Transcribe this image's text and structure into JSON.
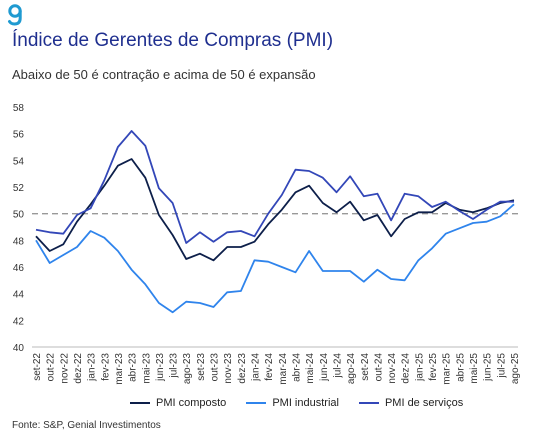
{
  "header": {
    "logo_icon": "genial-g-logo-icon",
    "title": "Índice de Gerentes de Compras (PMI)",
    "subtitle": "Abaixo de 50 é contração e acima de 50 é expansão"
  },
  "footer": {
    "source": "Fonte: S&P, Genial Investimentos"
  },
  "colors": {
    "composite": "#0d1f4a",
    "industrial": "#2f84ec",
    "services": "#3347b8",
    "reference": "#999999",
    "title": "#1f2f8f"
  },
  "chart_data": {
    "type": "line",
    "title": "Índice de Gerentes de Compras (PMI)",
    "subtitle": "Abaixo de 50 é contração e acima de 50 é expansão",
    "ylim": [
      40,
      58
    ],
    "yticks": [
      40,
      42,
      44,
      46,
      48,
      50,
      52,
      54,
      56,
      58
    ],
    "reference_line": 50,
    "grid": false,
    "legend_position": "bottom",
    "categories": [
      "set-22",
      "out-22",
      "nov-22",
      "dez-22",
      "jan-23",
      "fev-23",
      "mar-23",
      "abr-23",
      "mai-23",
      "jun-23",
      "jul-23",
      "ago-23",
      "set-23",
      "out-23",
      "nov-23",
      "dez-23",
      "jan-24",
      "fev-24",
      "mar-24",
      "abr-24",
      "mai-24",
      "jun-24",
      "jul-24",
      "ago-24",
      "set-24",
      "out-24",
      "nov-24",
      "dez-24",
      "jan-25",
      "fev-25",
      "mar-25",
      "abr-25",
      "mai-25",
      "jun-25",
      "jul-25",
      "ago-25"
    ],
    "series": [
      {
        "name": "PMI composto",
        "color": "#0d1f4a",
        "values": [
          48.3,
          47.2,
          47.7,
          49.4,
          50.7,
          52.1,
          53.6,
          54.1,
          52.7,
          49.9,
          48.4,
          46.6,
          47.0,
          46.5,
          47.5,
          47.5,
          47.9,
          49.2,
          50.3,
          51.6,
          52.1,
          50.8,
          50.1,
          50.9,
          49.5,
          49.9,
          48.3,
          49.6,
          50.1,
          50.1,
          50.8,
          50.3,
          50.1,
          50.4,
          50.8,
          51.0
        ]
      },
      {
        "name": "PMI industrial",
        "color": "#2f84ec",
        "values": [
          48.0,
          46.3,
          46.9,
          47.5,
          48.7,
          48.2,
          47.2,
          45.8,
          44.7,
          43.3,
          42.6,
          43.4,
          43.3,
          43.0,
          44.1,
          44.2,
          46.5,
          46.4,
          46.0,
          45.6,
          47.2,
          45.7,
          45.7,
          45.7,
          44.9,
          45.8,
          45.1,
          45.0,
          46.5,
          47.4,
          48.5,
          48.9,
          49.3,
          49.4,
          49.8,
          50.7
        ]
      },
      {
        "name": "PMI de serviços",
        "color": "#3347b8",
        "values": [
          48.8,
          48.6,
          48.5,
          49.9,
          50.4,
          52.5,
          55.0,
          56.2,
          55.1,
          51.9,
          50.8,
          47.8,
          48.6,
          47.9,
          48.6,
          48.7,
          48.3,
          50.0,
          51.4,
          53.3,
          53.2,
          52.7,
          51.6,
          52.8,
          51.3,
          51.5,
          49.5,
          51.5,
          51.3,
          50.5,
          50.9,
          50.2,
          49.6,
          50.3,
          50.9,
          50.9
        ]
      }
    ]
  }
}
